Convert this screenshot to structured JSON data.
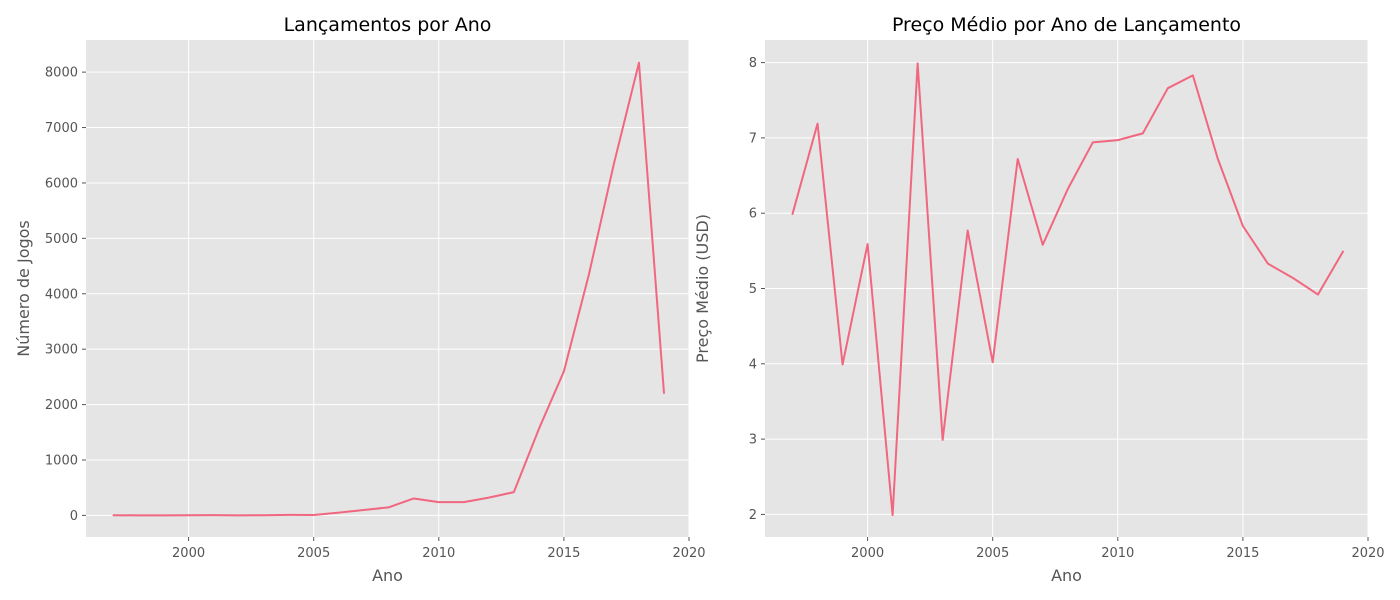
{
  "figure": {
    "background": "#ffffff"
  },
  "style": {
    "plot_background": "#e5e5e5",
    "grid_color": "#ffffff",
    "line_color": "#f0677f",
    "text_color": "#555555"
  },
  "chart_data": [
    {
      "type": "line",
      "title": "Lançamentos por Ano",
      "xlabel": "Ano",
      "ylabel": "Número de Jogos",
      "grid": true,
      "xlim": [
        1995.9,
        2020.0
      ],
      "ylim": [
        -390,
        8580
      ],
      "xticks": [
        2000,
        2005,
        2010,
        2015,
        2020
      ],
      "yticks": [
        0,
        1000,
        2000,
        3000,
        4000,
        5000,
        6000,
        7000,
        8000
      ],
      "series": [
        {
          "x": [
            1997,
            1998,
            1999,
            2000,
            2001,
            2002,
            2003,
            2004,
            2005,
            2006,
            2007,
            2008,
            2009,
            2010,
            2011,
            2012,
            2013,
            2014,
            2015,
            2016,
            2017,
            2018,
            2019
          ],
          "values": [
            2,
            1,
            1,
            2,
            5,
            1,
            3,
            10,
            8,
            50,
            98,
            145,
            305,
            240,
            240,
            320,
            420,
            1560,
            2600,
            4350,
            6350,
            8170,
            2210
          ]
        }
      ]
    },
    {
      "type": "line",
      "title": "Preço Médio por Ano de Lançamento",
      "xlabel": "Ano",
      "ylabel": "Preço Médio (USD)",
      "grid": true,
      "xlim": [
        1995.9,
        2020.0
      ],
      "ylim": [
        1.7,
        8.3
      ],
      "xticks": [
        2000,
        2005,
        2010,
        2015,
        2020
      ],
      "yticks": [
        2,
        3,
        4,
        5,
        6,
        7,
        8
      ],
      "series": [
        {
          "x": [
            1997,
            1998,
            1999,
            2000,
            2001,
            2002,
            2003,
            2004,
            2005,
            2006,
            2007,
            2008,
            2009,
            2010,
            2011,
            2012,
            2013,
            2014,
            2015,
            2016,
            2017,
            2018,
            2019
          ],
          "values": [
            5.99,
            7.19,
            3.99,
            5.59,
            1.99,
            7.99,
            2.99,
            5.77,
            4.02,
            6.72,
            5.58,
            6.32,
            6.94,
            6.97,
            7.06,
            7.66,
            7.83,
            6.72,
            5.83,
            5.33,
            5.14,
            4.92,
            5.49
          ]
        }
      ]
    }
  ]
}
